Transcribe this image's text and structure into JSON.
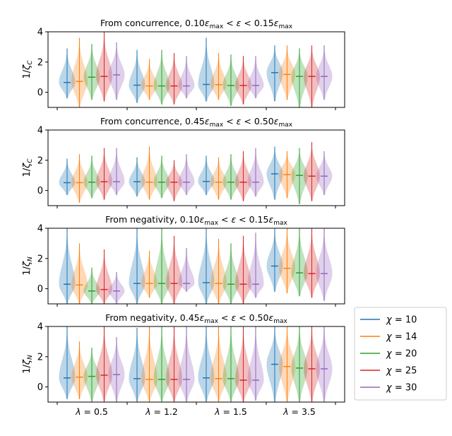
{
  "chart_data": {
    "type": "violin",
    "colors": [
      "#1f77b4",
      "#ff7f0e",
      "#2ca02c",
      "#d62728",
      "#9467bd"
    ],
    "legend": [
      "χ = 10",
      "χ = 14",
      "χ = 20",
      "χ = 25",
      "χ = 30"
    ],
    "x_tick_labels": [
      "λ = 0.5",
      "λ = 1.2",
      "λ = 1.5",
      "λ = 3.5"
    ],
    "panels": [
      {
        "title": "From concurrence, 0.10ε_max < ε < 0.15ε_max",
        "title_parts": [
          "From concurrence, 0.10",
          "ε",
          "max",
          " < ",
          "ε",
          " < 0.15",
          "ε",
          "max"
        ],
        "ylabel": "1/ζ_C",
        "ylabel_sub": "C",
        "ylim": [
          -1,
          4
        ],
        "yticks": [
          "0",
          "2",
          "4"
        ],
        "medians": [
          [
            0.65,
            0.72,
            1.0,
            1.05,
            1.15
          ],
          [
            0.47,
            0.42,
            0.42,
            0.42,
            0.42
          ],
          [
            0.52,
            0.5,
            0.45,
            0.45,
            0.45
          ],
          [
            1.3,
            1.18,
            1.05,
            1.05,
            1.05
          ]
        ],
        "max": [
          [
            2.9,
            3.6,
            3.2,
            4.0,
            3.3
          ],
          [
            2.8,
            2.2,
            2.8,
            2.6,
            2.4
          ],
          [
            3.6,
            2.6,
            2.5,
            2.4,
            2.4
          ],
          [
            3.1,
            3.1,
            2.9,
            3.1,
            3.1
          ]
        ],
        "min": [
          [
            -0.4,
            -1.0,
            -0.5,
            -0.6,
            -0.5
          ],
          [
            -0.7,
            -0.5,
            -0.8,
            -0.8,
            -0.4
          ],
          [
            -0.6,
            -0.5,
            -0.9,
            -0.8,
            -0.4
          ],
          [
            -0.6,
            -0.5,
            -1.0,
            -1.0,
            -0.5
          ]
        ]
      },
      {
        "title": "From concurrence, 0.45ε_max < ε < 0.50ε_max",
        "title_parts": [
          "From concurrence, 0.45",
          "ε",
          "max",
          " < ",
          "ε",
          " < 0.50",
          "ε",
          "max"
        ],
        "ylabel": "1/ζ_C",
        "ylabel_sub": "C",
        "ylim": [
          -1,
          4
        ],
        "yticks": [
          "0",
          "2",
          "4"
        ],
        "medians": [
          [
            0.52,
            0.52,
            0.55,
            0.58,
            0.58
          ],
          [
            0.58,
            0.55,
            0.55,
            0.55,
            0.55
          ],
          [
            0.6,
            0.55,
            0.55,
            0.55,
            0.55
          ],
          [
            1.1,
            1.05,
            1.0,
            0.95,
            0.95
          ]
        ],
        "max": [
          [
            2.1,
            2.4,
            2.3,
            2.8,
            2.8
          ],
          [
            2.2,
            2.9,
            2.3,
            2.0,
            2.4
          ],
          [
            2.3,
            2.2,
            2.4,
            2.6,
            2.8
          ],
          [
            2.9,
            2.6,
            2.8,
            3.2,
            2.6
          ]
        ],
        "min": [
          [
            -0.3,
            -0.8,
            -0.5,
            -0.6,
            -0.3
          ],
          [
            -0.4,
            -0.6,
            -0.5,
            -0.7,
            -0.3
          ],
          [
            -0.3,
            -0.6,
            -0.6,
            -0.7,
            -0.4
          ],
          [
            -0.6,
            -0.5,
            -0.9,
            -0.7,
            -0.3
          ]
        ]
      },
      {
        "title": "From negativity, 0.10ε_max < ε < 0.15ε_max",
        "title_parts": [
          "From negativity, 0.10",
          "ε",
          "max",
          " < ",
          "ε",
          " < 0.15",
          "ε",
          "max"
        ],
        "ylabel": "1/ζ_N",
        "ylabel_sub": "N",
        "ylim": [
          -1,
          4
        ],
        "yticks": [
          "0",
          "2",
          "4"
        ],
        "medians": [
          [
            0.3,
            0.25,
            -0.15,
            -0.05,
            -0.15
          ],
          [
            0.35,
            0.35,
            0.35,
            0.35,
            0.35
          ],
          [
            0.4,
            0.35,
            0.3,
            0.3,
            0.3
          ],
          [
            1.5,
            1.35,
            1.05,
            1.0,
            1.0
          ]
        ],
        "max": [
          [
            4.0,
            3.0,
            1.4,
            2.6,
            1.1
          ],
          [
            4.0,
            2.5,
            4.0,
            3.5,
            2.7
          ],
          [
            4.0,
            3.3,
            3.0,
            3.5,
            3.7
          ],
          [
            4.0,
            4.0,
            4.0,
            4.0,
            4.0
          ]
        ],
        "min": [
          [
            -1.0,
            -1.0,
            -1.0,
            -1.0,
            -1.0
          ],
          [
            -1.0,
            -0.6,
            -1.0,
            -1.0,
            -0.2
          ],
          [
            -1.0,
            -1.0,
            -1.0,
            -1.0,
            -0.6
          ],
          [
            -0.2,
            -0.3,
            -0.5,
            -0.6,
            -0.8
          ]
        ]
      },
      {
        "title": "From negativity, 0.45ε_max < ε < 0.50ε_max",
        "title_parts": [
          "From negativity, 0.45",
          "ε",
          "max",
          " < ",
          "ε",
          " < 0.50",
          "ε",
          "max"
        ],
        "ylabel": "1/ζ_N",
        "ylabel_sub": "N",
        "ylim": [
          -1,
          4
        ],
        "yticks": [
          "0",
          "2",
          "4"
        ],
        "medians": [
          [
            0.6,
            0.65,
            0.7,
            0.78,
            0.82
          ],
          [
            0.55,
            0.5,
            0.5,
            0.5,
            0.5
          ],
          [
            0.6,
            0.55,
            0.55,
            0.45,
            0.45
          ],
          [
            1.5,
            1.35,
            1.25,
            1.2,
            1.2
          ]
        ],
        "max": [
          [
            4.0,
            3.0,
            2.6,
            4.0,
            3.3
          ],
          [
            3.9,
            4.0,
            4.0,
            4.0,
            4.0
          ],
          [
            4.0,
            4.0,
            4.0,
            4.0,
            4.0
          ],
          [
            4.0,
            4.0,
            4.0,
            4.0,
            4.0
          ]
        ],
        "min": [
          [
            -0.8,
            -0.8,
            -1.0,
            -1.0,
            -1.0
          ],
          [
            -1.0,
            -1.0,
            -1.0,
            -1.0,
            -1.0
          ],
          [
            -1.0,
            -1.0,
            -1.0,
            -1.0,
            -0.9
          ],
          [
            -1.0,
            -1.0,
            -1.0,
            -1.0,
            -1.0
          ]
        ]
      }
    ]
  }
}
